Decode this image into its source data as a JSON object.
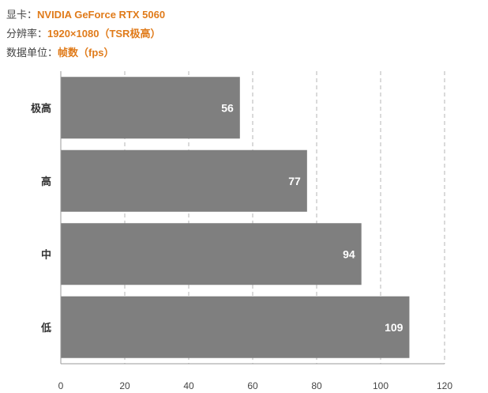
{
  "header": {
    "lines": [
      {
        "label": "显卡：",
        "value": "NVIDIA GeForce RTX 5060"
      },
      {
        "label": "分辨率：",
        "value": "1920×1080（TSR极高）"
      },
      {
        "label": "数据单位：",
        "value": "帧数（fps）"
      }
    ],
    "accent_color": "#e07b1a"
  },
  "chart_data": {
    "type": "bar",
    "orientation": "horizontal",
    "categories": [
      "极高",
      "高",
      "中",
      "低"
    ],
    "values": [
      56,
      77,
      94,
      109
    ],
    "xlim": [
      0,
      120
    ],
    "xticks": [
      "0",
      "20",
      "40",
      "60",
      "80",
      "100",
      "120"
    ],
    "grid": "vertical-dashed",
    "bar_color": "#7f7f7f"
  }
}
